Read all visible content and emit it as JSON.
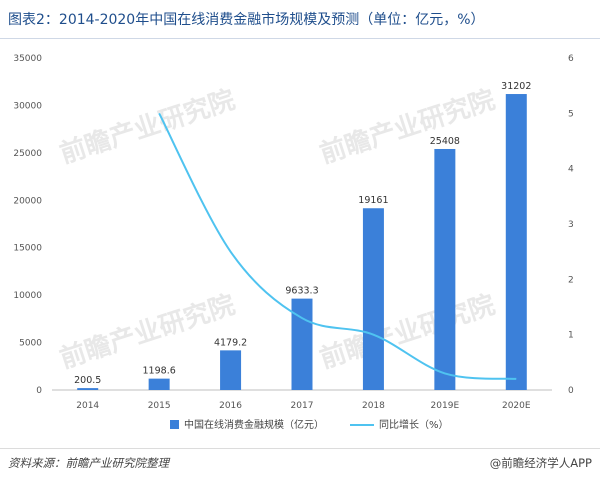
{
  "title": "图表2：2014-2020年中国在线消费金融市场规模及预测（单位：亿元，%）",
  "source": "资料来源：前瞻产业研究院整理",
  "brand": "@前瞻经济学人APP",
  "watermark": "前瞻产业研究院",
  "chart_data": {
    "type": "bar+line",
    "categories": [
      "2014",
      "2015",
      "2016",
      "2017",
      "2018",
      "2019E",
      "2020E"
    ],
    "series": [
      {
        "name": "中国在线消费金融规模（亿元）",
        "type": "bar",
        "axis": "left",
        "color": "#3b80d9",
        "values": [
          200.5,
          1198.6,
          4179.2,
          9633.3,
          19161,
          25408,
          31202
        ],
        "labels": [
          "200.5",
          "1198.6",
          "4179.2",
          "9633.3",
          "19161",
          "25408",
          "31202"
        ]
      },
      {
        "name": "同比增长（%）",
        "type": "line",
        "axis": "right",
        "color": "#4fc3f0",
        "values": [
          null,
          5.0,
          2.5,
          1.3,
          1.0,
          0.3,
          0.2
        ]
      }
    ],
    "ylim_left": [
      0,
      35000
    ],
    "yticks_left": [
      "0",
      "5000",
      "10000",
      "15000",
      "20000",
      "25000",
      "30000",
      "35000"
    ],
    "ylim_right": [
      0,
      6
    ],
    "yticks_right": [
      "0",
      "1",
      "2",
      "3",
      "4",
      "5",
      "6"
    ],
    "grid": false,
    "legend_position": "bottom"
  }
}
